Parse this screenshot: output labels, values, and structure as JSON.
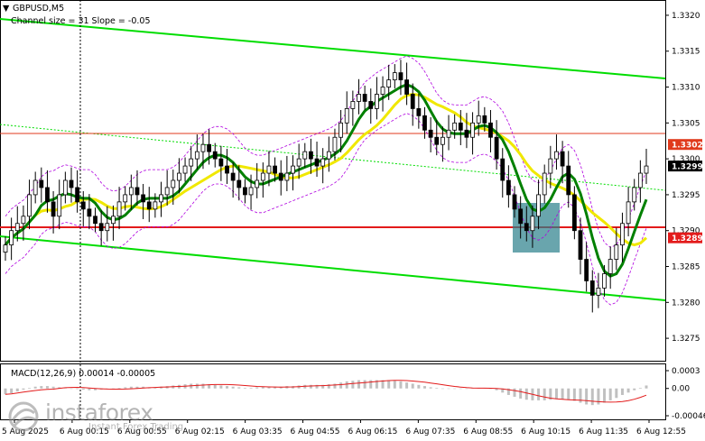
{
  "header": {
    "symbol": "GBPUSD,M5",
    "indicator": "Channel size = 31 Slope = -0.05",
    "macd_label": "MACD(12,26,9) 0.00014 -0.00005"
  },
  "watermark": {
    "brand": "instaforex",
    "tagline": "Instant Forex Trading"
  },
  "price_axis": {
    "ticks": [
      "1.3320",
      "1.3315",
      "1.3310",
      "1.3305",
      "1.3300",
      "1.3295",
      "1.3290",
      "1.3285",
      "1.3280",
      "1.3275"
    ],
    "badges": [
      {
        "label": "1.3302",
        "value": 1.3302,
        "color": "#e03a1c"
      },
      {
        "label": "1.3299",
        "value": 1.3299,
        "color": "#000000"
      },
      {
        "label": "1.3289",
        "value": 1.3289,
        "color": "#e31b1b"
      }
    ]
  },
  "macd_axis": {
    "ticks": [
      "0.0003",
      "0.00",
      "-0.00046"
    ]
  },
  "time_axis": {
    "labels": [
      "5 Aug 2025",
      "6 Aug 00:15",
      "6 Aug 00:55",
      "6 Aug 02:15",
      "6 Aug 03:35",
      "6 Aug 04:55",
      "6 Aug 06:15",
      "6 Aug 07:35",
      "6 Aug 08:55",
      "6 Aug 10:15",
      "6 Aug 11:35",
      "6 Aug 12:55"
    ]
  },
  "colors": {
    "channel": "#00dd00",
    "ma_fast": "#008000",
    "ma_slow": "#f0e800",
    "envelope": "#b000e0",
    "support": "#e31b1b",
    "resistance": "#e03a1c",
    "zone": "#2a7f8a",
    "macd_signal": "#e31b1b",
    "macd_hist": "#c0c0c0"
  },
  "chart_data": {
    "type": "candlestick",
    "symbol": "GBPUSD",
    "timeframe": "M5",
    "ylim": [
      1.32725,
      1.33215
    ],
    "horizontal_levels": [
      1.3302,
      1.3289
    ],
    "close_series": [
      1.3288,
      1.329,
      1.3291,
      1.3292,
      1.3295,
      1.3297,
      1.3296,
      1.3294,
      1.3292,
      1.3295,
      1.3297,
      1.3296,
      1.3294,
      1.3293,
      1.3292,
      1.3291,
      1.329,
      1.3291,
      1.3292,
      1.3294,
      1.3295,
      1.3296,
      1.3295,
      1.3294,
      1.3293,
      1.3294,
      1.3295,
      1.3296,
      1.3297,
      1.3298,
      1.3299,
      1.33,
      1.3301,
      1.3302,
      1.3301,
      1.33,
      1.3299,
      1.3298,
      1.3297,
      1.3296,
      1.3295,
      1.3296,
      1.3297,
      1.3298,
      1.3299,
      1.3298,
      1.3297,
      1.3298,
      1.3299,
      1.33,
      1.3301,
      1.33,
      1.3299,
      1.33,
      1.3301,
      1.3303,
      1.3305,
      1.3307,
      1.3308,
      1.3309,
      1.3308,
      1.3307,
      1.3309,
      1.331,
      1.3311,
      1.3312,
      1.3311,
      1.3309,
      1.3307,
      1.3306,
      1.3304,
      1.3303,
      1.3302,
      1.3303,
      1.3304,
      1.3305,
      1.3304,
      1.3303,
      1.3305,
      1.3306,
      1.3305,
      1.3303,
      1.33,
      1.3297,
      1.3295,
      1.3293,
      1.3291,
      1.329,
      1.3292,
      1.3295,
      1.3298,
      1.33,
      1.3301,
      1.3299,
      1.3295,
      1.329,
      1.3286,
      1.3283,
      1.3281,
      1.3282,
      1.3284,
      1.3286,
      1.3288,
      1.3291,
      1.3294,
      1.3296,
      1.3298,
      1.3299
    ],
    "macd_hist": [
      -0.0001,
      -8e-05,
      -5e-05,
      -2e-05,
      1e-05,
      3e-05,
      4e-05,
      4e-05,
      3e-05,
      2e-05,
      1e-05,
      0.0,
      -1e-05,
      -2e-05,
      -3e-05,
      -3e-05,
      -2e-05,
      -1e-05,
      0.0,
      1e-05,
      2e-05,
      3e-05,
      3e-05,
      3e-05,
      2e-05,
      2e-05,
      3e-05,
      4e-05,
      5e-05,
      6e-05,
      7e-05,
      8e-05,
      8e-05,
      8e-05,
      7e-05,
      6e-05,
      5e-05,
      4e-05,
      3e-05,
      2e-05,
      1e-05,
      1e-05,
      2e-05,
      3e-05,
      3e-05,
      3e-05,
      3e-05,
      4e-05,
      4e-05,
      5e-05,
      6e-05,
      6e-05,
      6e-05,
      6e-05,
      7e-05,
      8e-05,
      0.0001,
      0.00012,
      0.00013,
      0.00014,
      0.00014,
      0.00014,
      0.00014,
      0.00014,
      0.00014,
      0.00013,
      0.00012,
      0.0001,
      8e-05,
      6e-05,
      4e-05,
      2e-05,
      1e-05,
      0.0,
      0.0,
      0.0,
      0.0,
      0.0,
      1e-05,
      1e-05,
      1e-05,
      0.0,
      -3e-05,
      -7e-05,
      -0.00011,
      -0.00014,
      -0.00017,
      -0.00019,
      -0.0002,
      -0.0002,
      -0.0002,
      -0.00019,
      -0.00018,
      -0.00018,
      -0.00019,
      -0.00021,
      -0.00024,
      -0.00027,
      -0.00028,
      -0.00027,
      -0.00024,
      -0.0002,
      -0.00016,
      -0.00011,
      -7e-05,
      -3e-05,
      1e-05,
      5e-05
    ]
  }
}
